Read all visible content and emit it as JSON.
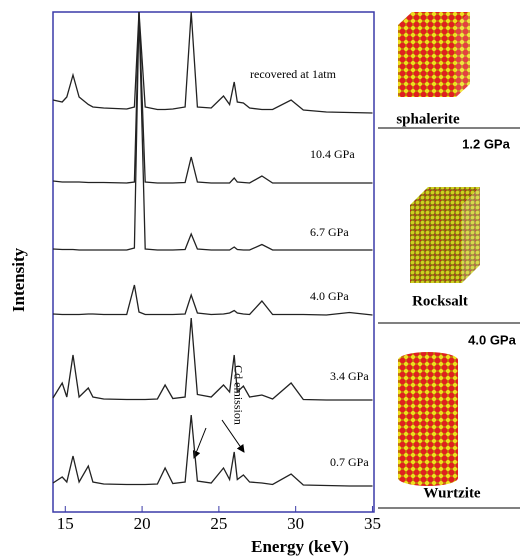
{
  "chart_data": {
    "type": "line",
    "xlabel": "Energy (keV)",
    "ylabel": "Intensity",
    "xlim": [
      14.2,
      35.1
    ],
    "xticks": [
      15,
      20,
      25,
      30,
      35
    ],
    "ylim": [
      0,
      100
    ],
    "x": [
      14.2,
      14.8,
      15.1,
      15.5,
      15.9,
      16.5,
      16.8,
      17.5,
      19.0,
      19.5,
      19.8,
      20.2,
      21.0,
      21.5,
      22.0,
      22.8,
      23.2,
      23.6,
      24.5,
      25.3,
      25.7,
      26.0,
      26.2,
      26.6,
      27.0,
      27.8,
      28.5,
      29.7,
      30.5,
      32,
      33.5,
      35
    ],
    "series": [
      {
        "name": "recovered at 1atm",
        "color": "#222222",
        "values": [
          82.4,
          82,
          83,
          87.4,
          83,
          81.5,
          81,
          80.8,
          80.6,
          81,
          100,
          81,
          80.5,
          80.5,
          80.6,
          81,
          100,
          81,
          80.8,
          83.2,
          81.5,
          86,
          82,
          81.8,
          80.8,
          80.5,
          80.5,
          82.4,
          80.4,
          80,
          79.9,
          79.8
        ]
      },
      {
        "name": "10.4 GPa",
        "color": "#222222",
        "values": [
          66.2,
          66,
          66,
          66,
          66,
          65.9,
          65.9,
          65.9,
          65.8,
          66,
          100,
          66,
          65.8,
          65.8,
          65.8,
          65.9,
          71,
          66,
          65.8,
          65.8,
          65.8,
          66.8,
          66,
          65.9,
          65.8,
          67.2,
          65.8,
          65.8,
          65.8,
          65.8,
          65.8,
          65.8
        ]
      },
      {
        "name": "6.7 GPa",
        "color": "#222222",
        "values": [
          52.6,
          52.5,
          52.5,
          52.5,
          52.4,
          52.4,
          52.4,
          52.4,
          52.4,
          52.8,
          100,
          52.6,
          52.4,
          52.4,
          52.4,
          52.5,
          55.6,
          52.6,
          52.4,
          52.4,
          52.4,
          53,
          52.5,
          52.4,
          52.4,
          53.5,
          52.4,
          52.4,
          52.4,
          52.4,
          52.4,
          52.4
        ]
      },
      {
        "name": "4.0 GPa",
        "color": "#222222",
        "values": [
          39.6,
          39.5,
          39.5,
          39.5,
          39.5,
          39.6,
          39.6,
          39.5,
          39.5,
          45.4,
          40,
          39.5,
          39.5,
          39.5,
          39.5,
          39.6,
          43.4,
          39.8,
          39.5,
          39.6,
          39.8,
          40.3,
          39.8,
          39.6,
          39.5,
          42.2,
          39.5,
          39.5,
          39.5,
          39.4,
          39.9,
          39.4
        ]
      },
      {
        "name": "3.4 GPa",
        "color": "#222222",
        "values": [
          22.8,
          25.8,
          23,
          31.4,
          23,
          24.8,
          23,
          22.6,
          22.5,
          22.5,
          22.5,
          22.5,
          22.6,
          25.4,
          22.7,
          23,
          38.8,
          23.5,
          23,
          25.4,
          24,
          31.4,
          24,
          25.2,
          23,
          23.4,
          22.6,
          25.8,
          22.5,
          22.4,
          22.4,
          22.4
        ]
      },
      {
        "name": "0.7 GPa",
        "color": "#222222",
        "values": [
          5.8,
          7,
          6,
          11.2,
          6,
          9.2,
          6,
          5.6,
          5.5,
          5.5,
          5.5,
          5.5,
          5.6,
          8.8,
          5.7,
          6,
          19.4,
          6.2,
          5.8,
          8.8,
          6.5,
          12,
          6.5,
          7.4,
          6,
          5.8,
          5.5,
          7.6,
          5.4,
          5.3,
          5.2,
          5.2
        ]
      }
    ],
    "annotations": [
      "Cd emission"
    ],
    "structures": [
      "sphalerite",
      "1.2 GPa",
      "Rocksalt",
      "4.0 GPa",
      "Wurtzite"
    ]
  }
}
